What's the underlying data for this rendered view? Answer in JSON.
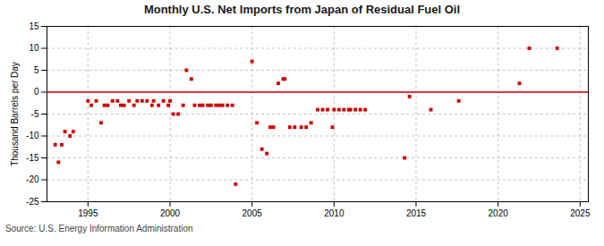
{
  "chart_data": {
    "type": "scatter",
    "title": "Monthly U.S. Net Imports from Japan of Residual Fuel Oil",
    "ylabel": "Thousand Barrels per Day",
    "source": "Source: U.S. Energy Information Administration",
    "xlim": [
      1992.5,
      2025.5
    ],
    "ylim": [
      -25,
      15
    ],
    "xticks": [
      1995,
      2000,
      2005,
      2010,
      2015,
      2020,
      2025
    ],
    "yticks": [
      -25,
      -20,
      -15,
      -10,
      -5,
      0,
      5,
      10,
      15
    ],
    "grid": true,
    "series": [
      {
        "type": "scatter",
        "marker": "square",
        "color": "#cc0000",
        "x": [
          1993.0,
          1993.2,
          1993.4,
          1993.6,
          1993.9,
          1994.1,
          1995.0,
          1995.2,
          1995.5,
          1995.8,
          1996.0,
          1996.2,
          1996.5,
          1996.8,
          1997.0,
          1997.2,
          1997.5,
          1997.8,
          1998.0,
          1998.3,
          1998.6,
          1998.9,
          1999.0,
          1999.3,
          1999.6,
          1999.9,
          2000.0,
          2000.2,
          2000.5,
          2000.8,
          2001.0,
          2001.3,
          2001.5,
          2001.8,
          2002.0,
          2002.3,
          2002.5,
          2002.8,
          2003.0,
          2003.2,
          2003.5,
          2003.8,
          2004.0,
          2005.0,
          2005.3,
          2005.6,
          2005.9,
          2006.1,
          2006.3,
          2006.6,
          2006.9,
          2007.0,
          2007.3,
          2007.6,
          2008.0,
          2008.3,
          2008.6,
          2009.0,
          2009.3,
          2009.6,
          2009.9,
          2010.0,
          2010.3,
          2010.6,
          2010.9,
          2011.0,
          2011.3,
          2011.6,
          2011.9,
          2014.3,
          2014.6,
          2015.9,
          2017.6,
          2021.3,
          2021.9,
          2023.6
        ],
        "values": [
          -12,
          -16,
          -12,
          -9,
          -10,
          -9,
          -2,
          -3,
          -2,
          -7,
          -3,
          -3,
          -2,
          -2,
          -3,
          -3,
          -2,
          -3,
          -2,
          -2,
          -2,
          -3,
          -2,
          -3,
          -2,
          -3,
          -2,
          -5,
          -5,
          -3,
          5,
          3,
          -3,
          -3,
          -3,
          -3,
          -3,
          -3,
          -3,
          -3,
          -3,
          -3,
          -21,
          7,
          -7,
          -13,
          -14,
          -8,
          -8,
          2,
          3,
          3,
          -8,
          -8,
          -8,
          -8,
          -7,
          -4,
          -4,
          -4,
          -8,
          -4,
          -4,
          -4,
          -4,
          -4,
          -4,
          -4,
          -4,
          -15,
          -1,
          -4,
          -2,
          2,
          10,
          10
        ]
      },
      {
        "type": "line",
        "line_style": "solid",
        "color": "#cc0000",
        "x": [
          1992.5,
          2025.5
        ],
        "values": [
          0,
          0
        ]
      }
    ]
  }
}
